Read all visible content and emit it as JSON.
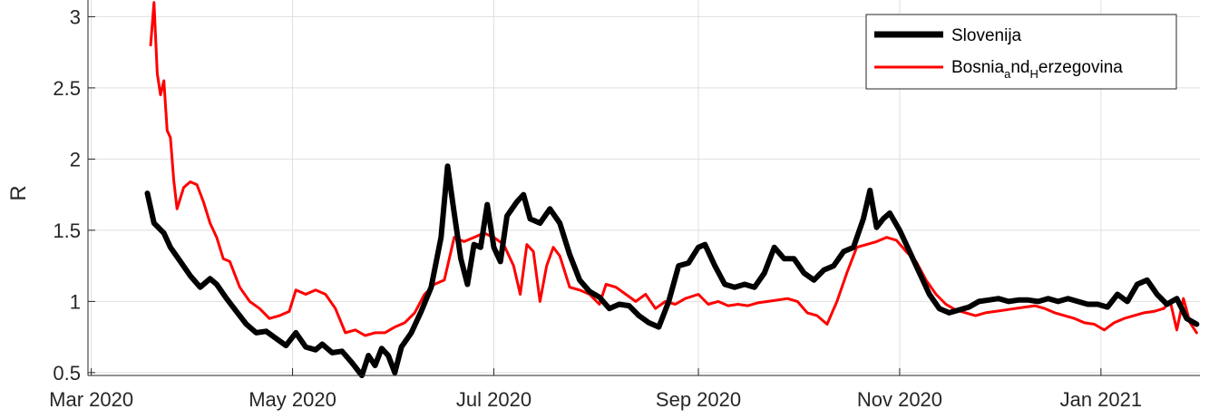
{
  "chart_data": {
    "type": "line",
    "title": "",
    "xlabel": "",
    "ylabel": "R",
    "xlim": [
      "2020-02-29",
      "2021-01-31"
    ],
    "ylim": [
      0.48,
      3.13
    ],
    "grid": true,
    "legend_position": "top-right",
    "x_ticks": [
      {
        "date": "2020-03-01",
        "label": "Mar 2020"
      },
      {
        "date": "2020-05-01",
        "label": "May 2020"
      },
      {
        "date": "2020-07-01",
        "label": "Jul 2020"
      },
      {
        "date": "2020-09-01",
        "label": "Sep 2020"
      },
      {
        "date": "2020-11-01",
        "label": "Nov 2020"
      },
      {
        "date": "2021-01-01",
        "label": "Jan 2021"
      }
    ],
    "y_ticks": [
      {
        "value": 0.5,
        "label": "0.5"
      },
      {
        "value": 1,
        "label": "1"
      },
      {
        "value": 1.5,
        "label": "1.5"
      },
      {
        "value": 2,
        "label": "2"
      },
      {
        "value": 2.5,
        "label": "2.5"
      },
      {
        "value": 3,
        "label": "3"
      }
    ],
    "series": [
      {
        "name": "Slovenija",
        "color": "#000000",
        "points": [
          [
            "2020-03-18",
            1.76
          ],
          [
            "2020-03-20",
            1.55
          ],
          [
            "2020-03-23",
            1.48
          ],
          [
            "2020-03-25",
            1.38
          ],
          [
            "2020-03-28",
            1.28
          ],
          [
            "2020-03-31",
            1.18
          ],
          [
            "2020-04-03",
            1.1
          ],
          [
            "2020-04-06",
            1.16
          ],
          [
            "2020-04-08",
            1.12
          ],
          [
            "2020-04-11",
            1.02
          ],
          [
            "2020-04-14",
            0.93
          ],
          [
            "2020-04-17",
            0.84
          ],
          [
            "2020-04-20",
            0.78
          ],
          [
            "2020-04-23",
            0.79
          ],
          [
            "2020-04-26",
            0.74
          ],
          [
            "2020-04-29",
            0.69
          ],
          [
            "2020-05-02",
            0.78
          ],
          [
            "2020-05-05",
            0.68
          ],
          [
            "2020-05-08",
            0.66
          ],
          [
            "2020-05-10",
            0.7
          ],
          [
            "2020-05-13",
            0.64
          ],
          [
            "2020-05-16",
            0.65
          ],
          [
            "2020-05-19",
            0.57
          ],
          [
            "2020-05-22",
            0.48
          ],
          [
            "2020-05-24",
            0.62
          ],
          [
            "2020-05-26",
            0.55
          ],
          [
            "2020-05-28",
            0.67
          ],
          [
            "2020-05-30",
            0.62
          ],
          [
            "2020-06-01",
            0.5
          ],
          [
            "2020-06-03",
            0.68
          ],
          [
            "2020-06-06",
            0.78
          ],
          [
            "2020-06-09",
            0.93
          ],
          [
            "2020-06-12",
            1.1
          ],
          [
            "2020-06-15",
            1.45
          ],
          [
            "2020-06-17",
            1.95
          ],
          [
            "2020-06-19",
            1.62
          ],
          [
            "2020-06-21",
            1.3
          ],
          [
            "2020-06-23",
            1.12
          ],
          [
            "2020-06-25",
            1.4
          ],
          [
            "2020-06-27",
            1.38
          ],
          [
            "2020-06-29",
            1.68
          ],
          [
            "2020-07-01",
            1.38
          ],
          [
            "2020-07-03",
            1.28
          ],
          [
            "2020-07-05",
            1.6
          ],
          [
            "2020-07-08",
            1.7
          ],
          [
            "2020-07-10",
            1.75
          ],
          [
            "2020-07-12",
            1.58
          ],
          [
            "2020-07-15",
            1.55
          ],
          [
            "2020-07-18",
            1.65
          ],
          [
            "2020-07-21",
            1.55
          ],
          [
            "2020-07-24",
            1.33
          ],
          [
            "2020-07-27",
            1.15
          ],
          [
            "2020-07-30",
            1.07
          ],
          [
            "2020-08-02",
            1.03
          ],
          [
            "2020-08-05",
            0.95
          ],
          [
            "2020-08-08",
            0.98
          ],
          [
            "2020-08-11",
            0.97
          ],
          [
            "2020-08-14",
            0.9
          ],
          [
            "2020-08-17",
            0.85
          ],
          [
            "2020-08-20",
            0.82
          ],
          [
            "2020-08-23",
            1.0
          ],
          [
            "2020-08-26",
            1.25
          ],
          [
            "2020-08-29",
            1.27
          ],
          [
            "2020-09-01",
            1.38
          ],
          [
            "2020-09-03",
            1.4
          ],
          [
            "2020-09-06",
            1.25
          ],
          [
            "2020-09-09",
            1.12
          ],
          [
            "2020-09-12",
            1.1
          ],
          [
            "2020-09-15",
            1.12
          ],
          [
            "2020-09-18",
            1.1
          ],
          [
            "2020-09-21",
            1.2
          ],
          [
            "2020-09-24",
            1.38
          ],
          [
            "2020-09-27",
            1.3
          ],
          [
            "2020-09-30",
            1.3
          ],
          [
            "2020-10-03",
            1.2
          ],
          [
            "2020-10-06",
            1.15
          ],
          [
            "2020-10-09",
            1.22
          ],
          [
            "2020-10-12",
            1.25
          ],
          [
            "2020-10-15",
            1.35
          ],
          [
            "2020-10-18",
            1.38
          ],
          [
            "2020-10-21",
            1.58
          ],
          [
            "2020-10-23",
            1.78
          ],
          [
            "2020-10-25",
            1.52
          ],
          [
            "2020-10-27",
            1.58
          ],
          [
            "2020-10-29",
            1.62
          ],
          [
            "2020-11-01",
            1.5
          ],
          [
            "2020-11-04",
            1.35
          ],
          [
            "2020-11-07",
            1.2
          ],
          [
            "2020-11-10",
            1.05
          ],
          [
            "2020-11-13",
            0.95
          ],
          [
            "2020-11-16",
            0.92
          ],
          [
            "2020-11-19",
            0.94
          ],
          [
            "2020-11-22",
            0.96
          ],
          [
            "2020-11-25",
            1.0
          ],
          [
            "2020-11-28",
            1.01
          ],
          [
            "2020-12-01",
            1.02
          ],
          [
            "2020-12-04",
            1.0
          ],
          [
            "2020-12-07",
            1.01
          ],
          [
            "2020-12-10",
            1.01
          ],
          [
            "2020-12-13",
            1.0
          ],
          [
            "2020-12-16",
            1.02
          ],
          [
            "2020-12-19",
            1.0
          ],
          [
            "2020-12-22",
            1.02
          ],
          [
            "2020-12-25",
            1.0
          ],
          [
            "2020-12-28",
            0.98
          ],
          [
            "2020-12-31",
            0.98
          ],
          [
            "2021-01-03",
            0.96
          ],
          [
            "2021-01-06",
            1.05
          ],
          [
            "2021-01-09",
            1.0
          ],
          [
            "2021-01-12",
            1.12
          ],
          [
            "2021-01-15",
            1.15
          ],
          [
            "2021-01-18",
            1.05
          ],
          [
            "2021-01-21",
            0.98
          ],
          [
            "2021-01-24",
            1.02
          ],
          [
            "2021-01-27",
            0.88
          ],
          [
            "2021-01-30",
            0.84
          ]
        ]
      },
      {
        "name": "Bosnia_and_Herzegovina",
        "color": "#ff0000",
        "points": [
          [
            "2020-03-19",
            2.8
          ],
          [
            "2020-03-20",
            3.1
          ],
          [
            "2020-03-21",
            2.6
          ],
          [
            "2020-03-22",
            2.45
          ],
          [
            "2020-03-23",
            2.55
          ],
          [
            "2020-03-24",
            2.2
          ],
          [
            "2020-03-25",
            2.15
          ],
          [
            "2020-03-26",
            1.85
          ],
          [
            "2020-03-27",
            1.65
          ],
          [
            "2020-03-29",
            1.8
          ],
          [
            "2020-03-31",
            1.84
          ],
          [
            "2020-04-02",
            1.82
          ],
          [
            "2020-04-04",
            1.7
          ],
          [
            "2020-04-06",
            1.55
          ],
          [
            "2020-04-08",
            1.45
          ],
          [
            "2020-04-10",
            1.3
          ],
          [
            "2020-04-12",
            1.28
          ],
          [
            "2020-04-15",
            1.1
          ],
          [
            "2020-04-18",
            1.0
          ],
          [
            "2020-04-21",
            0.95
          ],
          [
            "2020-04-24",
            0.88
          ],
          [
            "2020-04-27",
            0.9
          ],
          [
            "2020-04-30",
            0.93
          ],
          [
            "2020-05-02",
            1.08
          ],
          [
            "2020-05-05",
            1.05
          ],
          [
            "2020-05-08",
            1.08
          ],
          [
            "2020-05-11",
            1.05
          ],
          [
            "2020-05-14",
            0.95
          ],
          [
            "2020-05-17",
            0.78
          ],
          [
            "2020-05-20",
            0.8
          ],
          [
            "2020-05-23",
            0.76
          ],
          [
            "2020-05-26",
            0.78
          ],
          [
            "2020-05-29",
            0.78
          ],
          [
            "2020-06-01",
            0.82
          ],
          [
            "2020-06-04",
            0.85
          ],
          [
            "2020-06-07",
            0.92
          ],
          [
            "2020-06-10",
            1.05
          ],
          [
            "2020-06-13",
            1.12
          ],
          [
            "2020-06-16",
            1.15
          ],
          [
            "2020-06-19",
            1.45
          ],
          [
            "2020-06-22",
            1.42
          ],
          [
            "2020-06-25",
            1.45
          ],
          [
            "2020-06-28",
            1.48
          ],
          [
            "2020-07-01",
            1.45
          ],
          [
            "2020-07-04",
            1.4
          ],
          [
            "2020-07-07",
            1.25
          ],
          [
            "2020-07-09",
            1.05
          ],
          [
            "2020-07-11",
            1.4
          ],
          [
            "2020-07-13",
            1.35
          ],
          [
            "2020-07-15",
            1.0
          ],
          [
            "2020-07-17",
            1.25
          ],
          [
            "2020-07-19",
            1.38
          ],
          [
            "2020-07-21",
            1.32
          ],
          [
            "2020-07-24",
            1.1
          ],
          [
            "2020-07-27",
            1.08
          ],
          [
            "2020-07-30",
            1.05
          ],
          [
            "2020-08-02",
            0.98
          ],
          [
            "2020-08-04",
            1.12
          ],
          [
            "2020-08-07",
            1.1
          ],
          [
            "2020-08-10",
            1.05
          ],
          [
            "2020-08-13",
            1.0
          ],
          [
            "2020-08-16",
            1.05
          ],
          [
            "2020-08-19",
            0.95
          ],
          [
            "2020-08-22",
            1.0
          ],
          [
            "2020-08-25",
            0.98
          ],
          [
            "2020-08-28",
            1.02
          ],
          [
            "2020-09-01",
            1.05
          ],
          [
            "2020-09-04",
            0.98
          ],
          [
            "2020-09-07",
            1.0
          ],
          [
            "2020-09-10",
            0.97
          ],
          [
            "2020-09-13",
            0.98
          ],
          [
            "2020-09-16",
            0.97
          ],
          [
            "2020-09-19",
            0.99
          ],
          [
            "2020-09-22",
            1.0
          ],
          [
            "2020-09-25",
            1.01
          ],
          [
            "2020-09-28",
            1.02
          ],
          [
            "2020-10-01",
            1.0
          ],
          [
            "2020-10-04",
            0.92
          ],
          [
            "2020-10-07",
            0.9
          ],
          [
            "2020-10-10",
            0.84
          ],
          [
            "2020-10-13",
            1.0
          ],
          [
            "2020-10-16",
            1.2
          ],
          [
            "2020-10-19",
            1.38
          ],
          [
            "2020-10-22",
            1.4
          ],
          [
            "2020-10-25",
            1.42
          ],
          [
            "2020-10-28",
            1.45
          ],
          [
            "2020-10-31",
            1.43
          ],
          [
            "2020-11-03",
            1.35
          ],
          [
            "2020-11-06",
            1.28
          ],
          [
            "2020-11-09",
            1.15
          ],
          [
            "2020-11-12",
            1.05
          ],
          [
            "2020-11-15",
            0.98
          ],
          [
            "2020-11-18",
            0.94
          ],
          [
            "2020-11-21",
            0.92
          ],
          [
            "2020-11-24",
            0.9
          ],
          [
            "2020-11-27",
            0.92
          ],
          [
            "2020-11-30",
            0.93
          ],
          [
            "2020-12-03",
            0.94
          ],
          [
            "2020-12-06",
            0.95
          ],
          [
            "2020-12-09",
            0.96
          ],
          [
            "2020-12-12",
            0.97
          ],
          [
            "2020-12-15",
            0.95
          ],
          [
            "2020-12-18",
            0.92
          ],
          [
            "2020-12-21",
            0.9
          ],
          [
            "2020-12-24",
            0.88
          ],
          [
            "2020-12-27",
            0.85
          ],
          [
            "2020-12-30",
            0.84
          ],
          [
            "2021-01-02",
            0.8
          ],
          [
            "2021-01-05",
            0.85
          ],
          [
            "2021-01-08",
            0.88
          ],
          [
            "2021-01-11",
            0.9
          ],
          [
            "2021-01-14",
            0.92
          ],
          [
            "2021-01-17",
            0.93
          ],
          [
            "2021-01-20",
            0.95
          ],
          [
            "2021-01-22",
            1.0
          ],
          [
            "2021-01-24",
            0.8
          ],
          [
            "2021-01-26",
            1.02
          ],
          [
            "2021-01-28",
            0.85
          ],
          [
            "2021-01-30",
            0.78
          ]
        ]
      }
    ],
    "legend": [
      {
        "series": "Slovenija",
        "parts": [
          "Slovenija"
        ]
      },
      {
        "series": "Bosnia_and_Herzegovina",
        "parts": [
          "Bosnia",
          "a",
          "nd",
          "H",
          "erzegovina"
        ]
      }
    ]
  }
}
